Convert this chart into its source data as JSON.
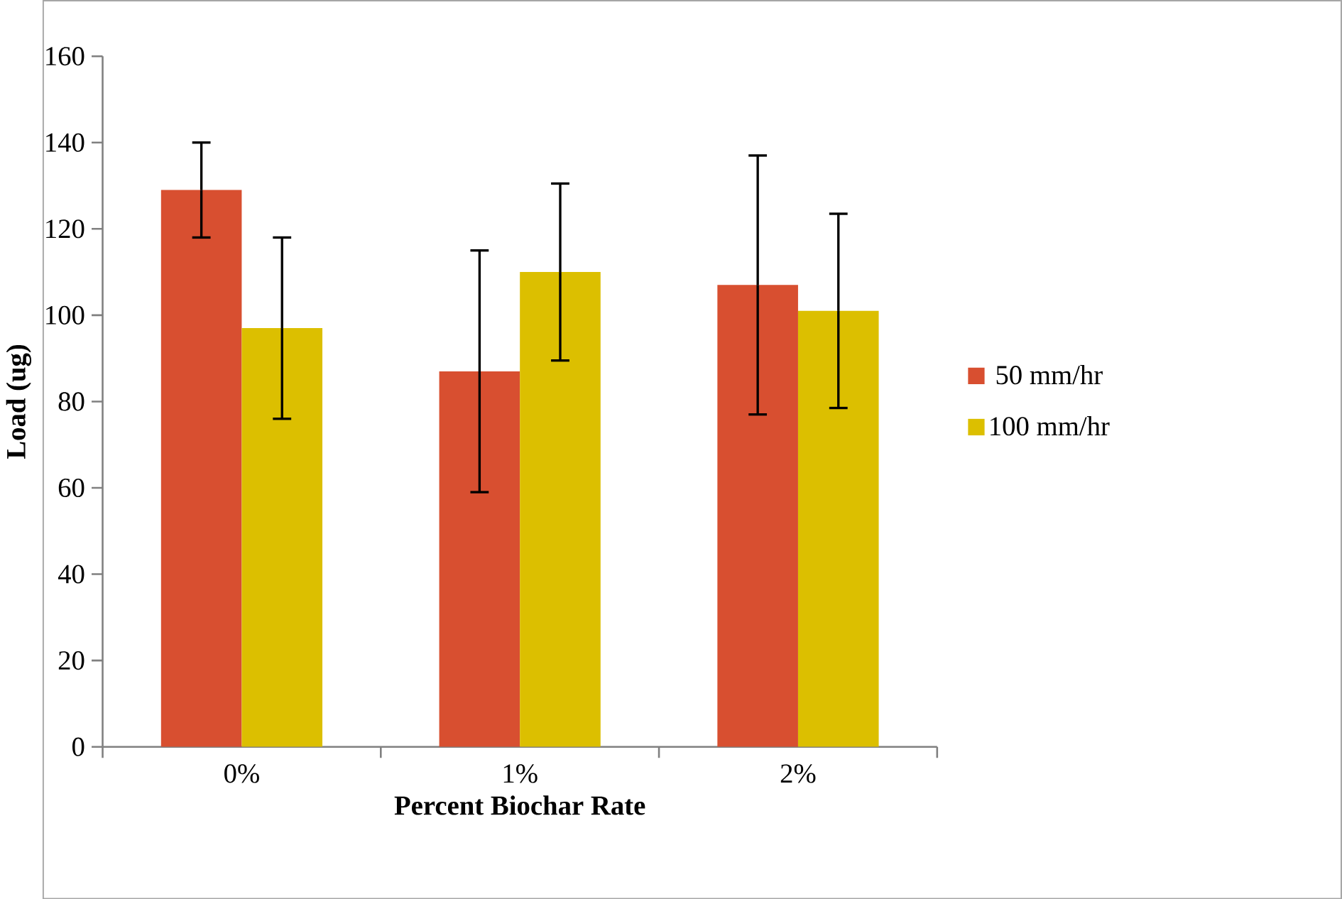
{
  "chart_data": {
    "type": "bar",
    "xlabel": "Percent Biochar Rate",
    "ylabel": "Load (ug)",
    "categories": [
      "0%",
      "1%",
      "2%"
    ],
    "series": [
      {
        "name": "50 mm/hr",
        "color": "#d84f30",
        "values": [
          129,
          87,
          107
        ],
        "errors": [
          11,
          28,
          30
        ]
      },
      {
        "name": "100 mm/hr",
        "color": "#dcbf00",
        "values": [
          97,
          110,
          101
        ],
        "errors": [
          21,
          20.5,
          22.5
        ]
      }
    ],
    "ylim": [
      0,
      160
    ],
    "yticks": [
      0,
      20,
      40,
      60,
      80,
      100,
      120,
      140,
      160
    ],
    "legend": "right"
  }
}
